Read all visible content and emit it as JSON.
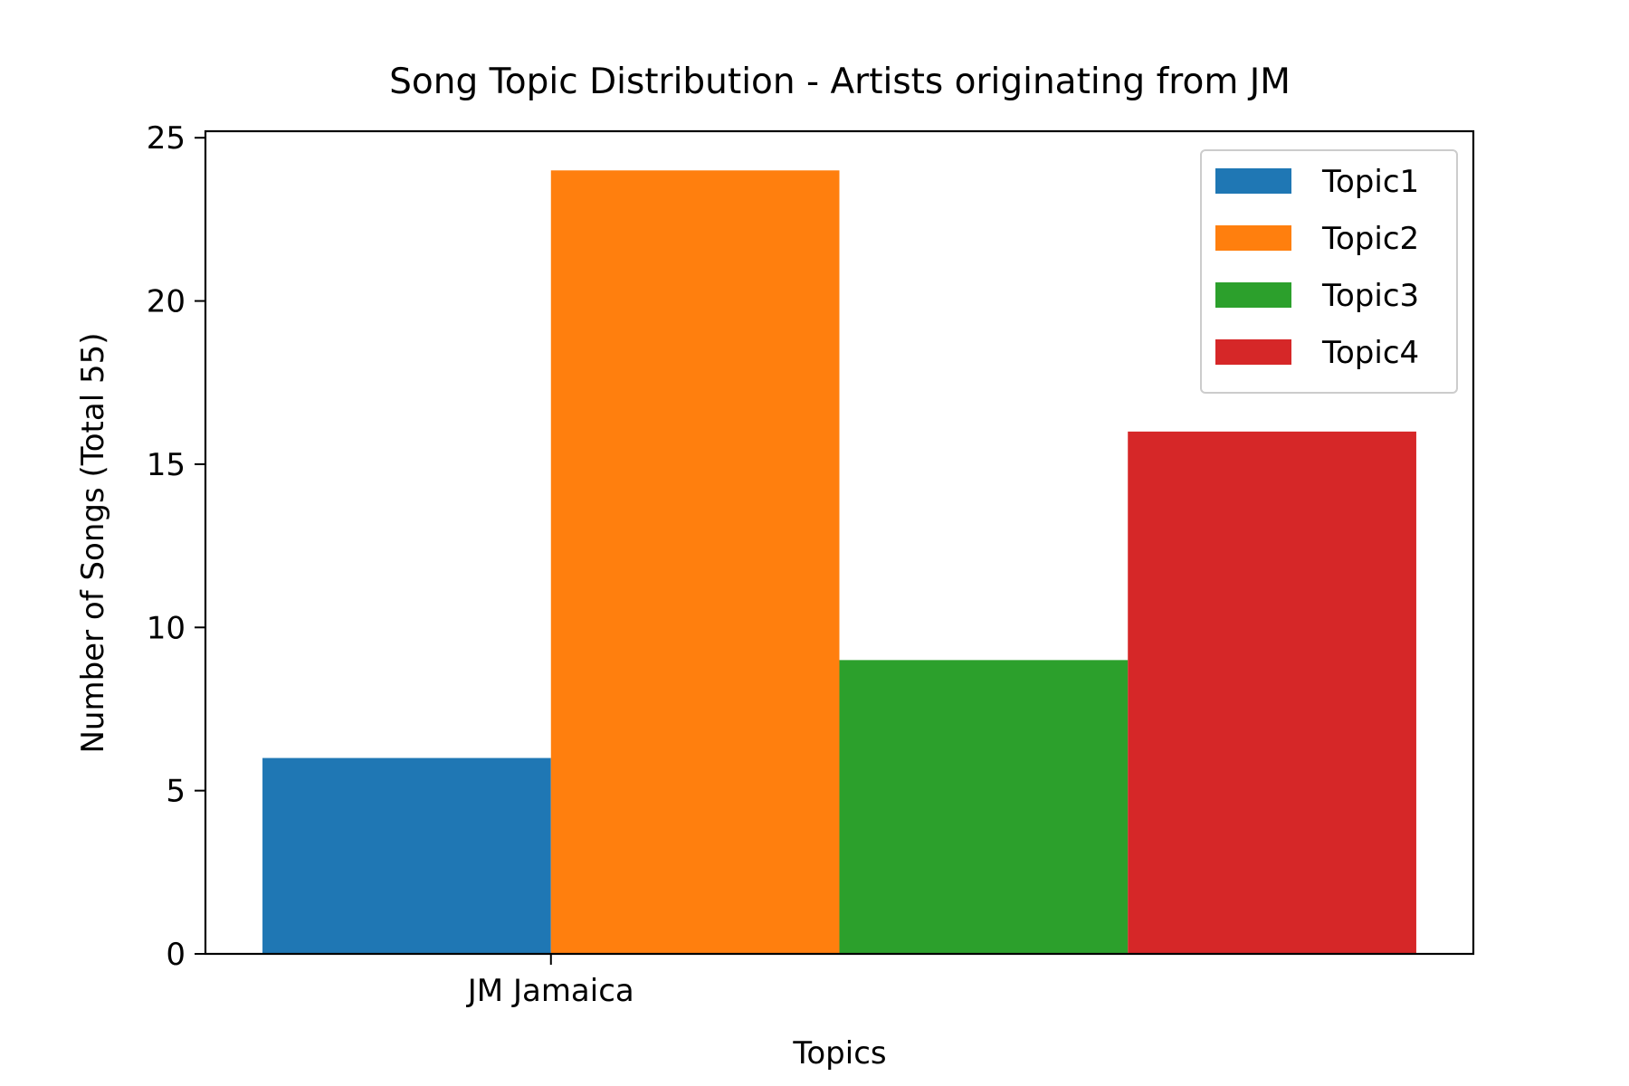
{
  "chart_data": {
    "type": "bar",
    "title": "Song Topic Distribution - Artists originating from JM",
    "xlabel": "Topics",
    "ylabel": "Number of Songs (Total 55)",
    "categories": [
      "JM Jamaica"
    ],
    "series": [
      {
        "name": "Topic1",
        "values": [
          6
        ],
        "color": "#1f77b4"
      },
      {
        "name": "Topic2",
        "values": [
          24
        ],
        "color": "#ff7f0e"
      },
      {
        "name": "Topic3",
        "values": [
          9
        ],
        "color": "#2ca02c"
      },
      {
        "name": "Topic4",
        "values": [
          16
        ],
        "color": "#d62728"
      }
    ],
    "ylim": [
      0,
      25.2
    ],
    "yticks": [
      0,
      5,
      10,
      15,
      20,
      25
    ],
    "grid": false,
    "legend_position": "top-right"
  }
}
